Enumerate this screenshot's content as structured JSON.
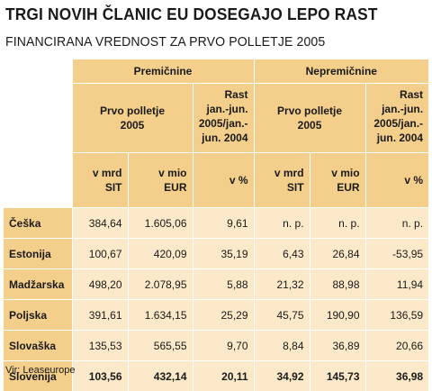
{
  "title": "TRGI NOVIH ČLANIC EU DOSEGAJO LEPO RAST",
  "subtitle": "FINANCIRANA VREDNOST ZA PRVO POLLETJE 2005",
  "groups": {
    "movable": "Premičnine",
    "immovable": "Nepremičnine"
  },
  "subheaders": {
    "period": [
      "Prvo polletje",
      "2005"
    ],
    "growth": [
      "Rast",
      "jan.-jun.",
      "2005/jan.-",
      "jun. 2004"
    ],
    "growth2": [
      "Rast",
      "jan.-jun.",
      "2005/jan.-",
      "jun. 2004"
    ]
  },
  "units": {
    "sit": [
      "v mrd",
      "SIT"
    ],
    "eur": [
      "v mio",
      "EUR"
    ],
    "pct": "v %"
  },
  "rows": [
    {
      "country": "Češka",
      "v": [
        "384,64",
        "1.605,06",
        "9,61",
        "n. p.",
        "n. p.",
        "n. p."
      ]
    },
    {
      "country": "Estonija",
      "v": [
        "100,67",
        "420,09",
        "35,19",
        "6,43",
        "26,84",
        "-53,95"
      ]
    },
    {
      "country": "Madžarska",
      "v": [
        "498,20",
        "2.078,95",
        "5,88",
        "21,32",
        "88,98",
        "11,94"
      ]
    },
    {
      "country": "Poljska",
      "v": [
        "391,61",
        "1.634,15",
        "25,29",
        "45,75",
        "190,90",
        "136,59"
      ]
    },
    {
      "country": "Slovaška",
      "v": [
        "135,53",
        "565,55",
        "9,70",
        "8,84",
        "36,89",
        "20,66"
      ]
    },
    {
      "country": "Slovenija",
      "v": [
        "103,56",
        "432,14",
        "20,11",
        "34,92",
        "145,73",
        "36,98"
      ]
    }
  ],
  "source": "Vir: Leaseurope",
  "colors": {
    "header": "#f4cf8b",
    "cell": "#fbe9c9"
  }
}
